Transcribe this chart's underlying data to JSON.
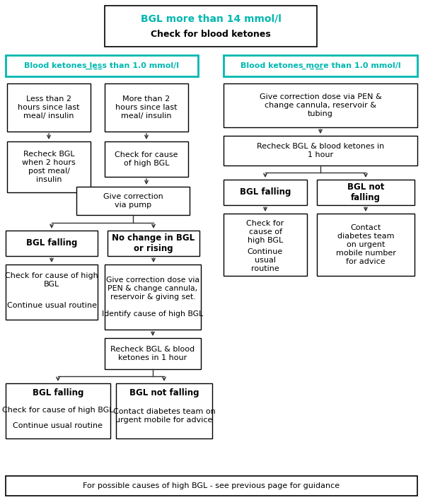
{
  "title_line1": "BGL more than 14 mmol/l",
  "title_line2": "Check for blood ketones",
  "title_color": "#00b8b0",
  "teal_border_color": "#00b8b0",
  "teal_text_color": "#00b8b0",
  "arrow_color": "#333333",
  "bg_color": "#ffffff",
  "footer_text": "For possible causes of high BGL - see previous page for guidance",
  "left_header": "Blood ketones less than 1.0 mmol/l",
  "right_header": "Blood ketones more than 1.0 mmol/l"
}
